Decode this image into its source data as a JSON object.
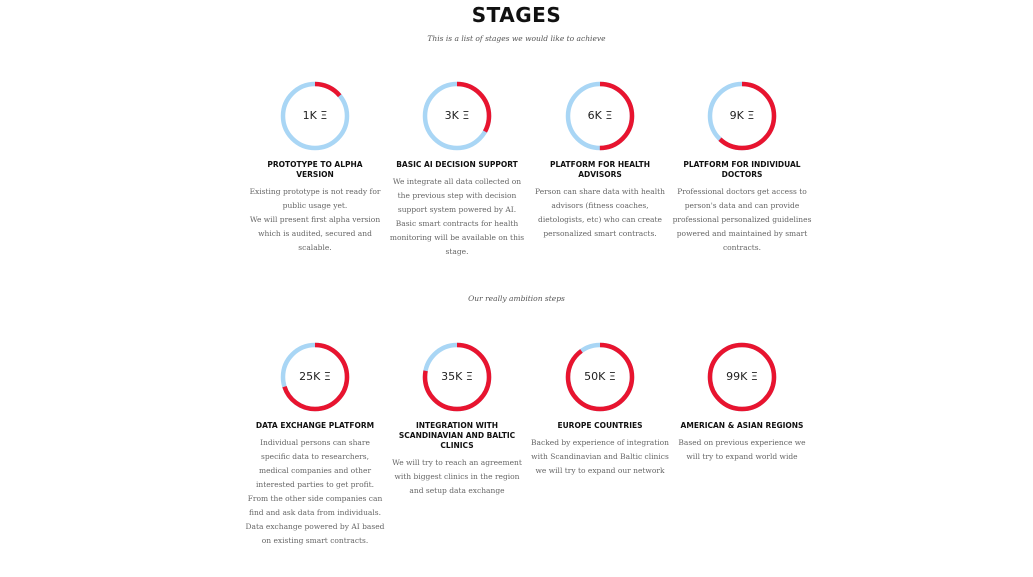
{
  "header": {
    "title": "STAGES",
    "subtitle": "This is a list of stages we would like to achieve"
  },
  "ambition_label": "Our really ambition steps",
  "colors": {
    "track": "#a9d6f5",
    "progress": "#e8142f"
  },
  "stages": [
    {
      "amount": "1K Ξ",
      "progress": 0.14,
      "name": "PROTOTYPE TO ALPHA VERSION",
      "description": "Existing prototype is not ready for public usage yet.\nWe will present first alpha version which is audited, secured and scalable."
    },
    {
      "amount": "3K Ξ",
      "progress": 0.33,
      "name": "BASIC AI DECISION SUPPORT",
      "description": "We integrate all data collected on the previous step with decision support system powered by AI. Basic smart contracts for health monitoring will be available on this stage."
    },
    {
      "amount": "6K Ξ",
      "progress": 0.5,
      "name": "PLATFORM FOR HEALTH ADVISORS",
      "description": "Person can share data with health advisors (fitness coaches, dietologists, etc) who can create personalized smart contracts."
    },
    {
      "amount": "9K Ξ",
      "progress": 0.62,
      "name": "PLATFORM FOR INDIVIDUAL DOCTORS",
      "description": "Professional doctors get access to person's data and can provide professional personalized guidelines powered and maintained by smart contracts."
    },
    {
      "amount": "25K Ξ",
      "progress": 0.7,
      "name": "DATA EXCHANGE PLATFORM",
      "description": "Individual persons can share specific data to researchers, medical companies and other interested parties to get profit.\nFrom the other side companies can find and ask data from individuals.\nData exchange powered by AI based on existing smart contracts."
    },
    {
      "amount": "35K Ξ",
      "progress": 0.78,
      "name": "INTEGRATION WITH SCANDINAVIAN AND BALTIC CLINICS",
      "description": "We will try to reach an agreement with biggest clinics in the region and setup data exchange"
    },
    {
      "amount": "50K Ξ",
      "progress": 0.9,
      "name": "EUROPE COUNTRIES",
      "description": "Backed by experience of integration with Scandinavian and Baltic clinics we will try to expand our network"
    },
    {
      "amount": "99K Ξ",
      "progress": 1.0,
      "name": "AMERICAN & ASIAN REGIONS",
      "description": "Based on previous experience we will try to expand world wide"
    }
  ]
}
